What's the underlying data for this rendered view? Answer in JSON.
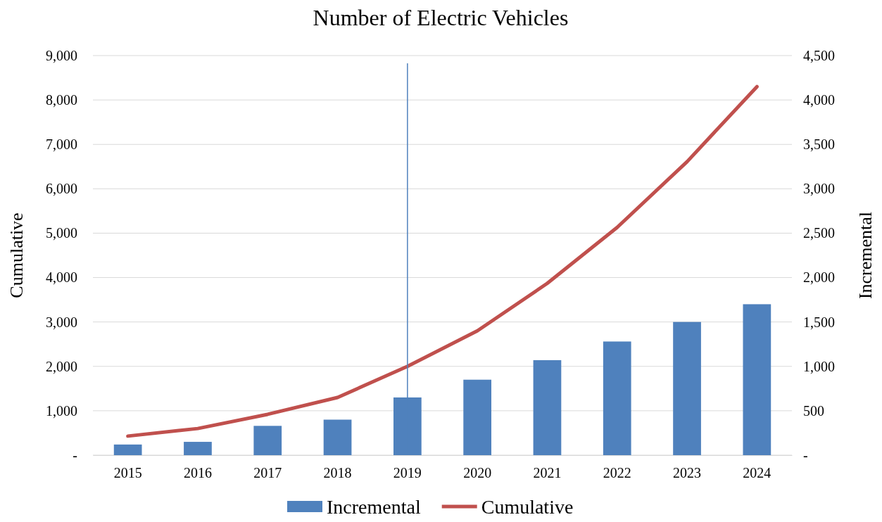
{
  "chart_data": {
    "type": "bar",
    "title": "Number of Electric Vehicles",
    "ylabel": "Cumulative",
    "y2label": "Incremental",
    "categories": [
      "2015",
      "2016",
      "2017",
      "2018",
      "2019",
      "2020",
      "2021",
      "2022",
      "2023",
      "2024"
    ],
    "series": [
      {
        "name": "Incremental",
        "axis": "y2",
        "color": "#4f81bd",
        "values": [
          120,
          150,
          330,
          400,
          650,
          850,
          1070,
          1280,
          1500,
          1700
        ]
      },
      {
        "name": "Cumulative",
        "type": "line",
        "axis": "y",
        "color": "#c0504d",
        "values": [
          430,
          600,
          920,
          1300,
          2000,
          2800,
          3870,
          5130,
          6610,
          8300
        ]
      }
    ],
    "ylim": [
      0,
      9000
    ],
    "yticks": [
      {
        "value": 0,
        "label": "-"
      },
      {
        "value": 1000,
        "label": "1,000"
      },
      {
        "value": 2000,
        "label": "2,000"
      },
      {
        "value": 3000,
        "label": "3,000"
      },
      {
        "value": 4000,
        "label": "4,000"
      },
      {
        "value": 5000,
        "label": "5,000"
      },
      {
        "value": 6000,
        "label": "6,000"
      },
      {
        "value": 7000,
        "label": "7,000"
      },
      {
        "value": 8000,
        "label": "8,000"
      },
      {
        "value": 9000,
        "label": "9,000"
      }
    ],
    "y2lim": [
      0,
      4500
    ],
    "y2ticks": [
      {
        "value": 0,
        "label": "-"
      },
      {
        "value": 500,
        "label": "500"
      },
      {
        "value": 1000,
        "label": "1,000"
      },
      {
        "value": 1500,
        "label": "1,500"
      },
      {
        "value": 2000,
        "label": "2,000"
      },
      {
        "value": 2500,
        "label": "2,500"
      },
      {
        "value": 3000,
        "label": "3,000"
      },
      {
        "value": 3500,
        "label": "3,500"
      },
      {
        "value": 4000,
        "label": "4,000"
      },
      {
        "value": 4500,
        "label": "4,500"
      }
    ],
    "ref_lines": [
      {
        "axis": "x",
        "value": "2019",
        "color": "#4f81bd"
      }
    ],
    "grid": "y",
    "legend": "bottom",
    "marker": "none"
  }
}
